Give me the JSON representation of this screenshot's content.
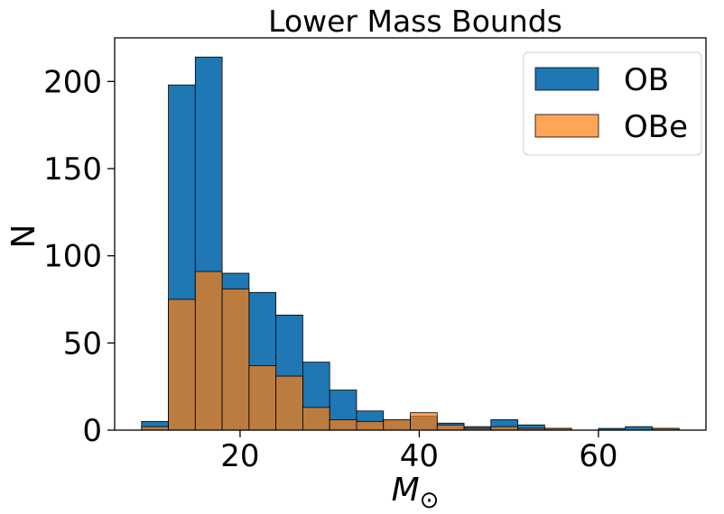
{
  "chart_data": {
    "type": "bar",
    "title": "Lower Mass Bounds",
    "xlabel_main": "M",
    "xlabel_sub": "⊙",
    "ylabel": "N",
    "bin_edges": [
      9,
      12,
      15,
      18,
      21,
      24,
      27,
      30,
      33,
      36,
      39,
      42,
      45,
      48,
      51,
      54,
      57,
      60,
      63,
      66,
      69
    ],
    "series": [
      {
        "name": "OB",
        "color": "#1f77b4",
        "values": [
          5,
          198,
          214,
          90,
          79,
          66,
          39,
          23,
          11,
          6,
          8,
          4,
          2,
          6,
          3,
          1,
          0,
          1,
          2,
          1
        ]
      },
      {
        "name": "OBe",
        "color": "#ff7f0e",
        "values": [
          2,
          75,
          91,
          81,
          37,
          31,
          13,
          6,
          5,
          6,
          10,
          3,
          1,
          2,
          1,
          1,
          0,
          0,
          0,
          1
        ]
      }
    ],
    "xlim": [
      6,
      72
    ],
    "ylim": [
      0,
      225
    ],
    "xticks": [
      {
        "value": 20,
        "label": "20"
      },
      {
        "value": 40,
        "label": "40"
      },
      {
        "value": 60,
        "label": "60"
      }
    ],
    "yticks": [
      {
        "value": 0,
        "label": "0"
      },
      {
        "value": 50,
        "label": "50"
      },
      {
        "value": 100,
        "label": "100"
      },
      {
        "value": 150,
        "label": "150"
      },
      {
        "value": 200,
        "label": "200"
      }
    ],
    "legend_position": "top-right",
    "grid": false
  }
}
